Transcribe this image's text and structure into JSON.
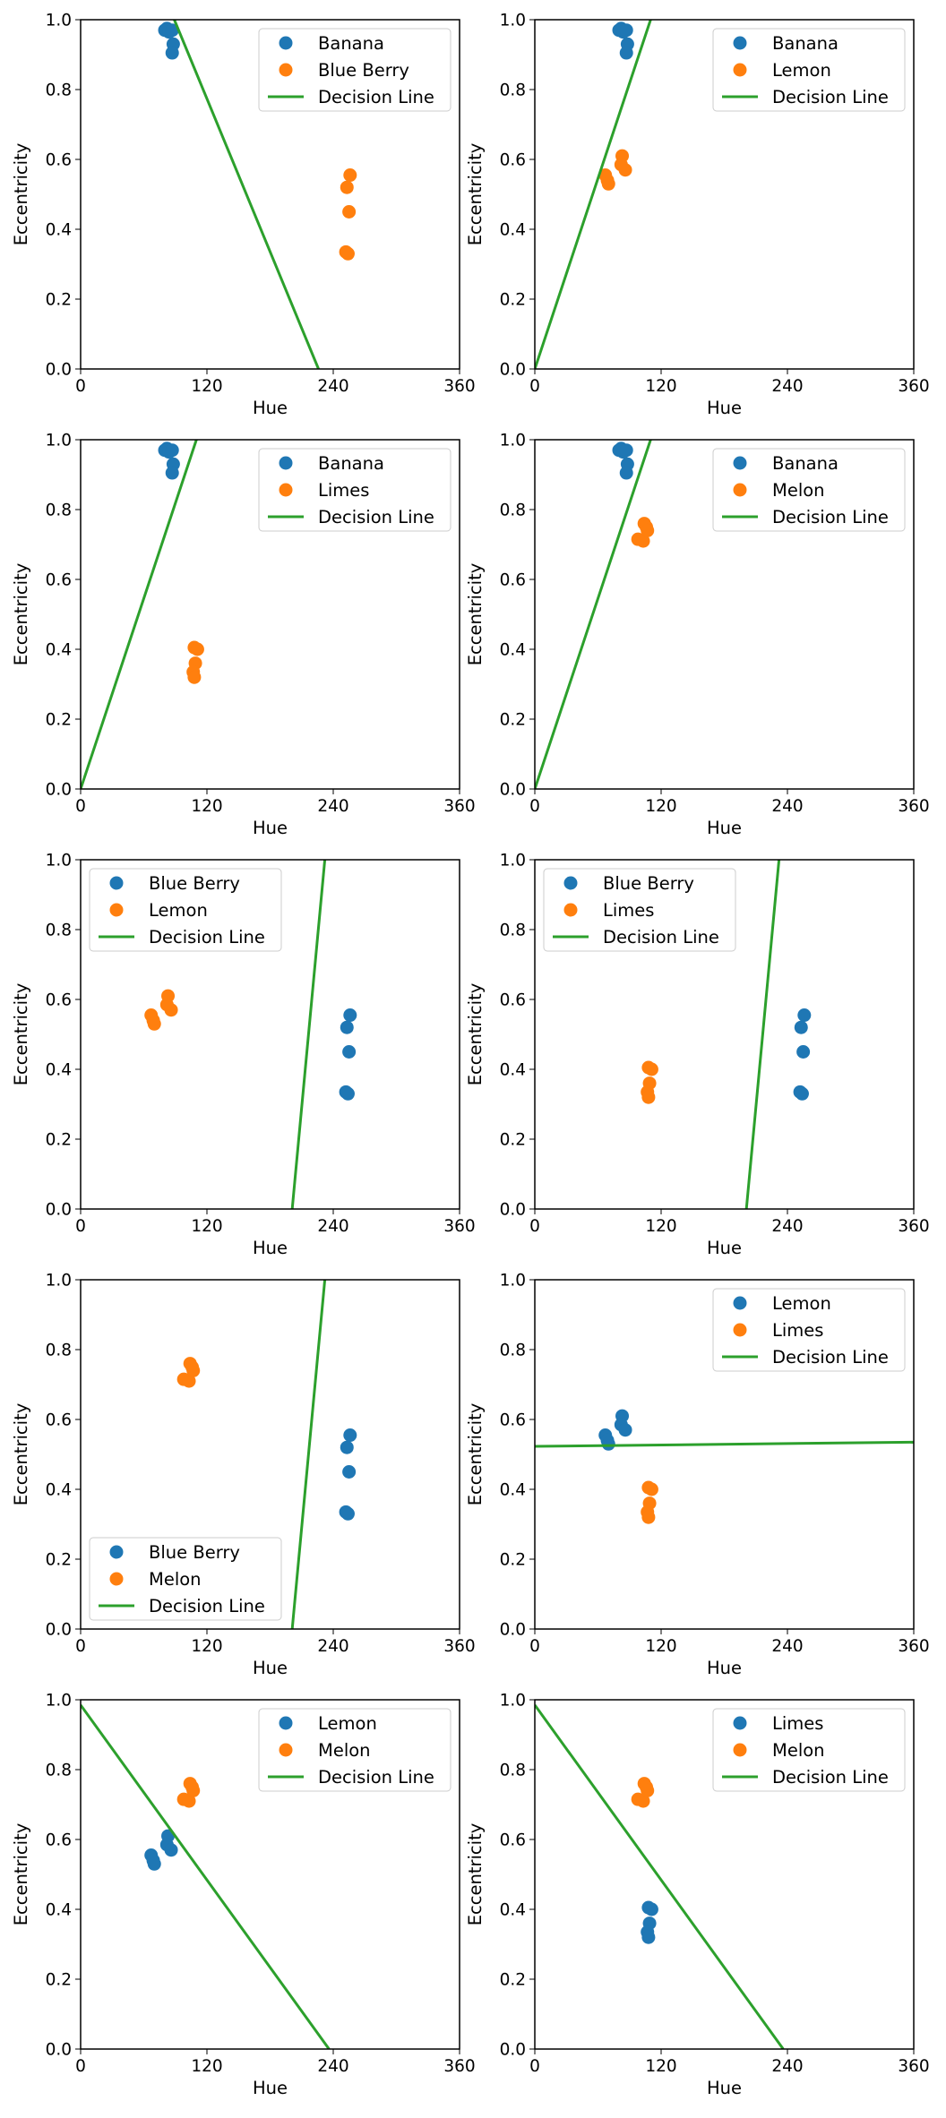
{
  "figure": {
    "colors": {
      "series_a": "#1f77b4",
      "series_b": "#ff7f0e",
      "decision_line": "#2ca02c"
    }
  },
  "chart_data": [
    {
      "type": "scatter",
      "xlabel": "Hue",
      "ylabel": "Eccentricity",
      "xlim": [
        0,
        360
      ],
      "ylim": [
        0,
        1
      ],
      "xticks": [
        "0",
        "120",
        "240",
        "360"
      ],
      "yticks": [
        "0.0",
        "0.2",
        "0.4",
        "0.6",
        "0.8",
        "1.0"
      ],
      "legend_position": "upper-right",
      "series": [
        {
          "name": "Banana",
          "points": [
            [
              80,
              0.97
            ],
            [
              82,
              0.975
            ],
            [
              84,
              0.965
            ],
            [
              87,
              0.97
            ],
            [
              88,
              0.93
            ],
            [
              87,
              0.905
            ]
          ]
        },
        {
          "name": "Blue Berry",
          "points": [
            [
              253,
              0.52
            ],
            [
              256,
              0.555
            ],
            [
              255,
              0.45
            ],
            [
              252,
              0.335
            ],
            [
              254,
              0.33
            ]
          ]
        }
      ],
      "decision_line": {
        "name": "Decision Line",
        "points": [
          [
            89,
            1.0
          ],
          [
            226,
            0.0
          ]
        ]
      }
    },
    {
      "type": "scatter",
      "xlabel": "Hue",
      "ylabel": "Eccentricity",
      "xlim": [
        0,
        360
      ],
      "ylim": [
        0,
        1
      ],
      "xticks": [
        "0",
        "120",
        "240",
        "360"
      ],
      "yticks": [
        "0.0",
        "0.2",
        "0.4",
        "0.6",
        "0.8",
        "1.0"
      ],
      "legend_position": "upper-right",
      "series": [
        {
          "name": "Banana",
          "points": [
            [
              80,
              0.97
            ],
            [
              82,
              0.975
            ],
            [
              84,
              0.965
            ],
            [
              87,
              0.97
            ],
            [
              88,
              0.93
            ],
            [
              87,
              0.905
            ]
          ]
        },
        {
          "name": "Lemon",
          "points": [
            [
              67,
              0.555
            ],
            [
              69,
              0.54
            ],
            [
              70,
              0.53
            ],
            [
              83,
              0.61
            ],
            [
              82,
              0.585
            ],
            [
              86,
              0.57
            ]
          ]
        }
      ],
      "decision_line": {
        "name": "Decision Line",
        "points": [
          [
            0,
            0.0
          ],
          [
            110,
            1.0
          ]
        ]
      }
    },
    {
      "type": "scatter",
      "xlabel": "Hue",
      "ylabel": "Eccentricity",
      "xlim": [
        0,
        360
      ],
      "ylim": [
        0,
        1
      ],
      "xticks": [
        "0",
        "120",
        "240",
        "360"
      ],
      "yticks": [
        "0.0",
        "0.2",
        "0.4",
        "0.6",
        "0.8",
        "1.0"
      ],
      "legend_position": "upper-right",
      "series": [
        {
          "name": "Banana",
          "points": [
            [
              80,
              0.97
            ],
            [
              82,
              0.975
            ],
            [
              84,
              0.965
            ],
            [
              87,
              0.97
            ],
            [
              88,
              0.93
            ],
            [
              87,
              0.905
            ]
          ]
        },
        {
          "name": "Limes",
          "points": [
            [
              108,
              0.405
            ],
            [
              111,
              0.4
            ],
            [
              109,
              0.36
            ],
            [
              107,
              0.335
            ],
            [
              108,
              0.32
            ]
          ]
        }
      ],
      "decision_line": {
        "name": "Decision Line",
        "points": [
          [
            0,
            0.0
          ],
          [
            110,
            1.0
          ]
        ]
      }
    },
    {
      "type": "scatter",
      "xlabel": "Hue",
      "ylabel": "Eccentricity",
      "xlim": [
        0,
        360
      ],
      "ylim": [
        0,
        1
      ],
      "xticks": [
        "0",
        "120",
        "240",
        "360"
      ],
      "yticks": [
        "0.0",
        "0.2",
        "0.4",
        "0.6",
        "0.8",
        "1.0"
      ],
      "legend_position": "upper-right",
      "series": [
        {
          "name": "Banana",
          "points": [
            [
              80,
              0.97
            ],
            [
              82,
              0.975
            ],
            [
              84,
              0.965
            ],
            [
              87,
              0.97
            ],
            [
              88,
              0.93
            ],
            [
              87,
              0.905
            ]
          ]
        },
        {
          "name": "Melon",
          "points": [
            [
              98,
              0.715
            ],
            [
              103,
              0.71
            ],
            [
              104,
              0.76
            ],
            [
              106,
              0.75
            ],
            [
              107,
              0.74
            ]
          ]
        }
      ],
      "decision_line": {
        "name": "Decision Line",
        "points": [
          [
            0,
            0.0
          ],
          [
            110,
            1.0
          ]
        ]
      }
    },
    {
      "type": "scatter",
      "xlabel": "Hue",
      "ylabel": "Eccentricity",
      "xlim": [
        0,
        360
      ],
      "ylim": [
        0,
        1
      ],
      "xticks": [
        "0",
        "120",
        "240",
        "360"
      ],
      "yticks": [
        "0.0",
        "0.2",
        "0.4",
        "0.6",
        "0.8",
        "1.0"
      ],
      "legend_position": "upper-left",
      "series": [
        {
          "name": "Blue Berry",
          "points": [
            [
              253,
              0.52
            ],
            [
              256,
              0.555
            ],
            [
              255,
              0.45
            ],
            [
              252,
              0.335
            ],
            [
              254,
              0.33
            ]
          ]
        },
        {
          "name": "Lemon",
          "points": [
            [
              67,
              0.555
            ],
            [
              69,
              0.54
            ],
            [
              70,
              0.53
            ],
            [
              83,
              0.61
            ],
            [
              82,
              0.585
            ],
            [
              86,
              0.57
            ]
          ]
        }
      ],
      "decision_line": {
        "name": "Decision Line",
        "points": [
          [
            201,
            0.0
          ],
          [
            232,
            1.0
          ]
        ]
      }
    },
    {
      "type": "scatter",
      "xlabel": "Hue",
      "ylabel": "Eccentricity",
      "xlim": [
        0,
        360
      ],
      "ylim": [
        0,
        1
      ],
      "xticks": [
        "0",
        "120",
        "240",
        "360"
      ],
      "yticks": [
        "0.0",
        "0.2",
        "0.4",
        "0.6",
        "0.8",
        "1.0"
      ],
      "legend_position": "upper-left",
      "series": [
        {
          "name": "Blue Berry",
          "points": [
            [
              253,
              0.52
            ],
            [
              256,
              0.555
            ],
            [
              255,
              0.45
            ],
            [
              252,
              0.335
            ],
            [
              254,
              0.33
            ]
          ]
        },
        {
          "name": "Limes",
          "points": [
            [
              108,
              0.405
            ],
            [
              111,
              0.4
            ],
            [
              109,
              0.36
            ],
            [
              107,
              0.335
            ],
            [
              108,
              0.32
            ]
          ]
        }
      ],
      "decision_line": {
        "name": "Decision Line",
        "points": [
          [
            201,
            0.0
          ],
          [
            232,
            1.0
          ]
        ]
      }
    },
    {
      "type": "scatter",
      "xlabel": "Hue",
      "ylabel": "Eccentricity",
      "xlim": [
        0,
        360
      ],
      "ylim": [
        0,
        1
      ],
      "xticks": [
        "0",
        "120",
        "240",
        "360"
      ],
      "yticks": [
        "0.0",
        "0.2",
        "0.4",
        "0.6",
        "0.8",
        "1.0"
      ],
      "legend_position": "lower-left",
      "series": [
        {
          "name": "Blue Berry",
          "points": [
            [
              253,
              0.52
            ],
            [
              256,
              0.555
            ],
            [
              255,
              0.45
            ],
            [
              252,
              0.335
            ],
            [
              254,
              0.33
            ]
          ]
        },
        {
          "name": "Melon",
          "points": [
            [
              98,
              0.715
            ],
            [
              103,
              0.71
            ],
            [
              104,
              0.76
            ],
            [
              106,
              0.75
            ],
            [
              107,
              0.74
            ]
          ]
        }
      ],
      "decision_line": {
        "name": "Decision Line",
        "points": [
          [
            201,
            0.0
          ],
          [
            232,
            1.0
          ]
        ]
      }
    },
    {
      "type": "scatter",
      "xlabel": "Hue",
      "ylabel": "Eccentricity",
      "xlim": [
        0,
        360
      ],
      "ylim": [
        0,
        1
      ],
      "xticks": [
        "0",
        "120",
        "240",
        "360"
      ],
      "yticks": [
        "0.0",
        "0.2",
        "0.4",
        "0.6",
        "0.8",
        "1.0"
      ],
      "legend_position": "upper-right",
      "series": [
        {
          "name": "Lemon",
          "points": [
            [
              67,
              0.555
            ],
            [
              69,
              0.54
            ],
            [
              70,
              0.53
            ],
            [
              83,
              0.61
            ],
            [
              82,
              0.585
            ],
            [
              86,
              0.57
            ]
          ]
        },
        {
          "name": "Limes",
          "points": [
            [
              108,
              0.405
            ],
            [
              111,
              0.4
            ],
            [
              109,
              0.36
            ],
            [
              107,
              0.335
            ],
            [
              108,
              0.32
            ]
          ]
        }
      ],
      "decision_line": {
        "name": "Decision Line",
        "points": [
          [
            0,
            0.523
          ],
          [
            360,
            0.535
          ]
        ]
      }
    },
    {
      "type": "scatter",
      "xlabel": "Hue",
      "ylabel": "Eccentricity",
      "xlim": [
        0,
        360
      ],
      "ylim": [
        0,
        1
      ],
      "xticks": [
        "0",
        "120",
        "240",
        "360"
      ],
      "yticks": [
        "0.0",
        "0.2",
        "0.4",
        "0.6",
        "0.8",
        "1.0"
      ],
      "legend_position": "upper-right",
      "series": [
        {
          "name": "Lemon",
          "points": [
            [
              67,
              0.555
            ],
            [
              69,
              0.54
            ],
            [
              70,
              0.53
            ],
            [
              83,
              0.61
            ],
            [
              82,
              0.585
            ],
            [
              86,
              0.57
            ]
          ]
        },
        {
          "name": "Melon",
          "points": [
            [
              98,
              0.715
            ],
            [
              103,
              0.71
            ],
            [
              104,
              0.76
            ],
            [
              106,
              0.75
            ],
            [
              107,
              0.74
            ]
          ]
        }
      ],
      "decision_line": {
        "name": "Decision Line",
        "points": [
          [
            0,
            0.985
          ],
          [
            236,
            0.0
          ]
        ]
      }
    },
    {
      "type": "scatter",
      "xlabel": "Hue",
      "ylabel": "Eccentricity",
      "xlim": [
        0,
        360
      ],
      "ylim": [
        0,
        1
      ],
      "xticks": [
        "0",
        "120",
        "240",
        "360"
      ],
      "yticks": [
        "0.0",
        "0.2",
        "0.4",
        "0.6",
        "0.8",
        "1.0"
      ],
      "legend_position": "upper-right",
      "series": [
        {
          "name": "Limes",
          "points": [
            [
              108,
              0.405
            ],
            [
              111,
              0.4
            ],
            [
              109,
              0.36
            ],
            [
              107,
              0.335
            ],
            [
              108,
              0.32
            ]
          ]
        },
        {
          "name": "Melon",
          "points": [
            [
              98,
              0.715
            ],
            [
              103,
              0.71
            ],
            [
              104,
              0.76
            ],
            [
              106,
              0.75
            ],
            [
              107,
              0.74
            ]
          ]
        }
      ],
      "decision_line": {
        "name": "Decision Line",
        "points": [
          [
            0,
            0.985
          ],
          [
            236,
            0.0
          ]
        ]
      }
    }
  ]
}
